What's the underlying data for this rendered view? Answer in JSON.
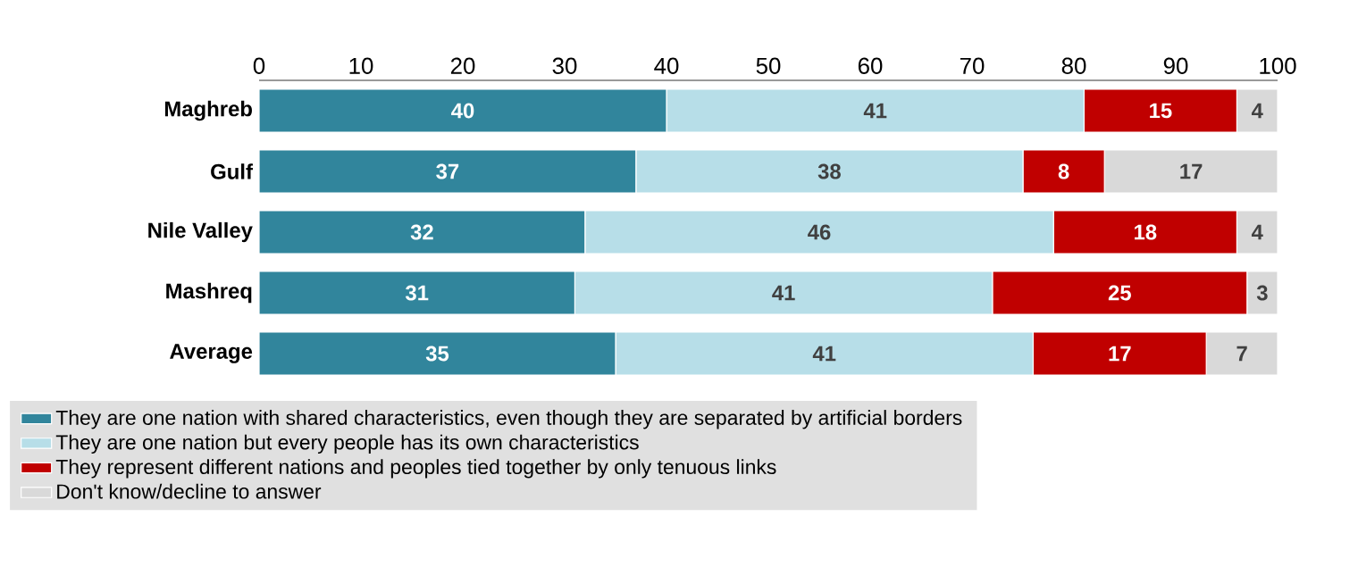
{
  "chart_data": {
    "type": "bar",
    "orientation": "horizontal",
    "stacked": true,
    "data_labels": true,
    "legend": "bottom",
    "categories": [
      "Maghreb",
      "Gulf",
      "Nile Valley",
      "Mashreq",
      "Average"
    ],
    "xlim": [
      0,
      100
    ],
    "xticks": [
      0,
      10,
      20,
      30,
      40,
      50,
      60,
      70,
      80,
      90,
      100
    ],
    "series": [
      {
        "name": "They are one nation with shared characteristics, even though they are separated by artificial borders",
        "color": "#31859c",
        "values": [
          40,
          37,
          32,
          31,
          35
        ]
      },
      {
        "name": "They are one nation but every people has its own characteristics",
        "color": "#b7dee8",
        "values": [
          41,
          38,
          46,
          41,
          41
        ]
      },
      {
        "name": "They represent different nations and peoples tied together by only tenuous links",
        "color": "#c00000",
        "values": [
          15,
          8,
          18,
          25,
          17
        ]
      },
      {
        "name": "Don't know/decline to answer",
        "color": "#d9d9d9",
        "values": [
          4,
          17,
          4,
          3,
          7
        ]
      }
    ]
  }
}
